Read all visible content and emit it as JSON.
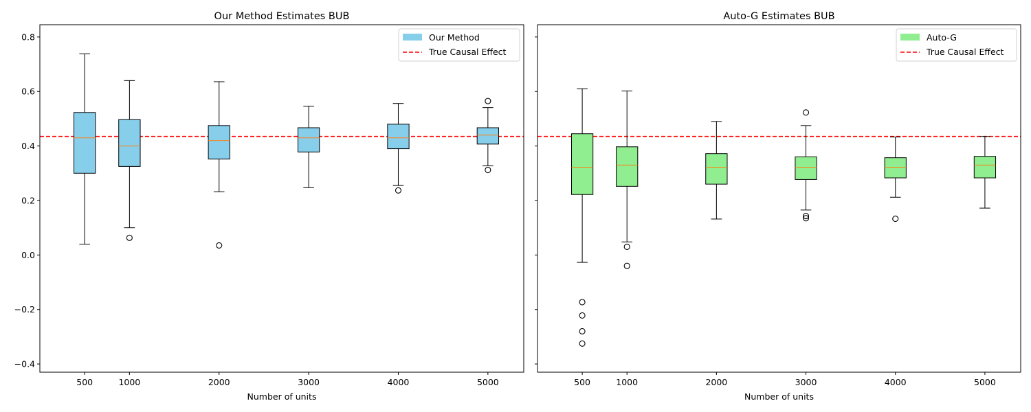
{
  "chart_data": [
    {
      "type": "boxplot",
      "title": "Our Method Estimates BUB",
      "xlabel": "Number of units",
      "ylabel": "",
      "ylim": [
        -0.43,
        0.845
      ],
      "yticks": [
        -0.4,
        -0.2,
        0.0,
        0.2,
        0.4,
        0.6,
        0.8
      ],
      "ytick_labels": [
        "−0.4",
        "−0.2",
        "0.0",
        "0.2",
        "0.4",
        "0.6",
        "0.8"
      ],
      "x_range": [
        0,
        5400
      ],
      "categories": [
        "500",
        "1000",
        "2000",
        "3000",
        "4000",
        "5000"
      ],
      "box_color": "#87ceeb",
      "median_color": "#ff7f0e",
      "reference_line": {
        "value": 0.435,
        "color": "#ff0000",
        "label": "True Causal Effect"
      },
      "legend": {
        "position": "upper right",
        "entries": [
          "Our Method",
          "True Causal Effect"
        ]
      },
      "boxes": [
        {
          "x": 500,
          "whisker_low": 0.04,
          "q1": 0.3,
          "median": 0.43,
          "q3": 0.523,
          "whisker_high": 0.738,
          "outliers": []
        },
        {
          "x": 1000,
          "whisker_low": 0.1,
          "q1": 0.325,
          "median": 0.4,
          "q3": 0.497,
          "whisker_high": 0.64,
          "outliers": [
            0.063
          ]
        },
        {
          "x": 2000,
          "whisker_low": 0.232,
          "q1": 0.352,
          "median": 0.42,
          "q3": 0.475,
          "whisker_high": 0.636,
          "outliers": [
            0.035
          ]
        },
        {
          "x": 3000,
          "whisker_low": 0.247,
          "q1": 0.378,
          "median": 0.43,
          "q3": 0.467,
          "whisker_high": 0.546,
          "outliers": []
        },
        {
          "x": 4000,
          "whisker_low": 0.255,
          "q1": 0.39,
          "median": 0.43,
          "q3": 0.48,
          "whisker_high": 0.556,
          "outliers": [
            0.237
          ]
        },
        {
          "x": 5000,
          "whisker_low": 0.327,
          "q1": 0.407,
          "median": 0.44,
          "q3": 0.467,
          "whisker_high": 0.541,
          "outliers": [
            0.565,
            0.312
          ]
        }
      ]
    },
    {
      "type": "boxplot",
      "title": "Auto-G Estimates BUB",
      "xlabel": "Number of units",
      "ylabel": "",
      "ylim": [
        -0.43,
        0.845
      ],
      "shared_y": true,
      "x_range": [
        0,
        5400
      ],
      "categories": [
        "500",
        "1000",
        "2000",
        "3000",
        "4000",
        "5000"
      ],
      "box_color": "#90ee90",
      "median_color": "#ff7f0e",
      "reference_line": {
        "value": 0.435,
        "color": "#ff0000",
        "label": "True Causal Effect"
      },
      "legend": {
        "position": "upper right",
        "entries": [
          "Auto-G",
          "True Causal Effect"
        ]
      },
      "boxes": [
        {
          "x": 500,
          "whisker_low": -0.027,
          "q1": 0.222,
          "median": 0.322,
          "q3": 0.445,
          "whisker_high": 0.61,
          "outliers": [
            -0.173,
            -0.222,
            -0.28,
            -0.325
          ]
        },
        {
          "x": 1000,
          "whisker_low": 0.048,
          "q1": 0.252,
          "median": 0.33,
          "q3": 0.397,
          "whisker_high": 0.602,
          "outliers": [
            0.03,
            -0.04
          ]
        },
        {
          "x": 2000,
          "whisker_low": 0.132,
          "q1": 0.26,
          "median": 0.322,
          "q3": 0.372,
          "whisker_high": 0.49,
          "outliers": []
        },
        {
          "x": 3000,
          "whisker_low": 0.165,
          "q1": 0.277,
          "median": 0.322,
          "q3": 0.36,
          "whisker_high": 0.475,
          "outliers": [
            0.523,
            0.143,
            0.135
          ]
        },
        {
          "x": 4000,
          "whisker_low": 0.212,
          "q1": 0.283,
          "median": 0.322,
          "q3": 0.357,
          "whisker_high": 0.433,
          "outliers": [
            0.133
          ]
        },
        {
          "x": 5000,
          "whisker_low": 0.172,
          "q1": 0.283,
          "median": 0.33,
          "q3": 0.362,
          "whisker_high": 0.435,
          "outliers": []
        }
      ]
    }
  ]
}
